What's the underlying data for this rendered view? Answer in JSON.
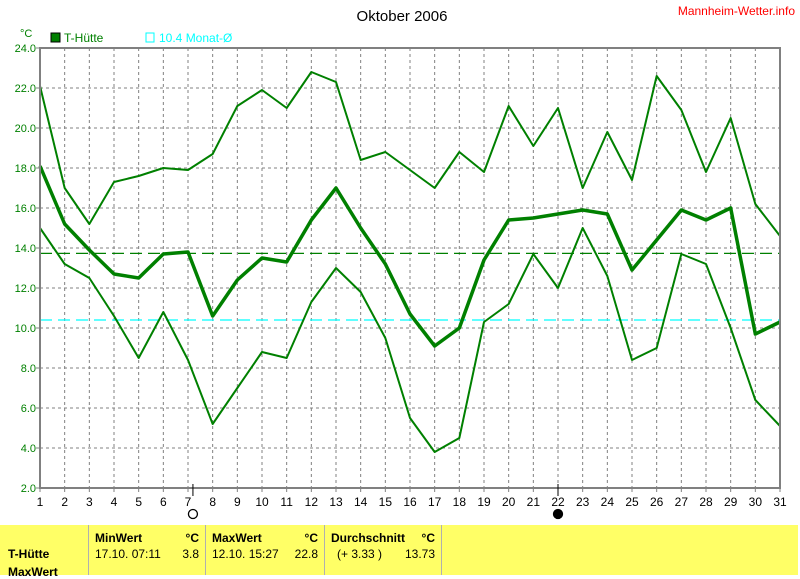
{
  "title": "Oktober 2006",
  "site": "Mannheim-Wetter.info",
  "colors": {
    "series": "#008000",
    "reference_mean": "#008000",
    "reference_month": "#00ffff",
    "grid": "#808080",
    "panel": "#ffff66"
  },
  "legend": {
    "series": "T-Hütte",
    "reference": "10.4 Monat-Ø"
  },
  "moon_phases": [
    {
      "day": 7.2,
      "icon": "full-moon-open-circle-icon"
    },
    {
      "day": 22.0,
      "icon": "new-moon-filled-circle-icon"
    }
  ],
  "chart_data": {
    "type": "line",
    "title": "Oktober 2006",
    "ylabel": "°C",
    "ylim": [
      2.0,
      24.0
    ],
    "yticks": [
      "2.0",
      "4.0",
      "6.0",
      "8.0",
      "10.0",
      "12.0",
      "14.0",
      "16.0",
      "18.0",
      "20.0",
      "22.0",
      "24.0"
    ],
    "x": [
      1,
      2,
      3,
      4,
      5,
      6,
      7,
      8,
      9,
      10,
      11,
      12,
      13,
      14,
      15,
      16,
      17,
      18,
      19,
      20,
      21,
      22,
      23,
      24,
      25,
      26,
      27,
      28,
      29,
      30,
      31
    ],
    "grid": true,
    "legend_position": "top-left",
    "series": [
      {
        "values": [
          22.1,
          17.0,
          15.2,
          17.3,
          17.6,
          18.0,
          17.9,
          18.7,
          21.1,
          21.9,
          21.0,
          22.8,
          22.3,
          18.4,
          18.8,
          17.9,
          17.0,
          18.8,
          17.8,
          21.1,
          19.1,
          21.0,
          17.0,
          19.8,
          17.4,
          22.6,
          20.9,
          17.8,
          20.5,
          16.2,
          14.6
        ],
        "width": 2
      },
      {
        "name": "T-Hütte",
        "values": [
          18.1,
          15.2,
          13.9,
          12.7,
          12.5,
          13.7,
          13.8,
          10.6,
          12.4,
          13.5,
          13.3,
          15.4,
          17.0,
          15.0,
          13.2,
          10.7,
          9.1,
          10.0,
          13.4,
          15.4,
          15.5,
          15.7,
          15.9,
          15.7,
          12.9,
          14.4,
          15.9,
          15.4,
          16.0,
          9.7,
          10.3
        ],
        "width": 3.5
      },
      {
        "values": [
          15.0,
          13.2,
          12.5,
          10.6,
          8.5,
          10.8,
          8.4,
          5.2,
          7.0,
          8.8,
          8.5,
          11.3,
          13.0,
          11.8,
          9.5,
          5.5,
          3.8,
          4.5,
          10.3,
          11.2,
          13.7,
          12.0,
          15.0,
          12.6,
          8.4,
          9.0,
          13.7,
          13.2,
          10.0,
          6.4,
          5.1
        ],
        "width": 2
      }
    ],
    "reference_lines": [
      {
        "value": 13.73,
        "color": "#008000"
      },
      {
        "value": 10.4,
        "color": "#00ffff",
        "label": "10.4 Monat-Ø"
      }
    ]
  },
  "stats": {
    "row_label": "T-Hütte",
    "next_row_label": "MaxWert",
    "min": {
      "header": "MinWert",
      "unit": "°C",
      "datetime": "17.10.  07:11",
      "value": "3.8"
    },
    "max": {
      "header": "MaxWert",
      "unit": "°C",
      "datetime": "12.10.  15:27",
      "value": "22.8"
    },
    "avg": {
      "header": "Durchschnitt",
      "unit": "°C",
      "deviation": "(+ 3.33 )",
      "value": "13.73"
    }
  }
}
